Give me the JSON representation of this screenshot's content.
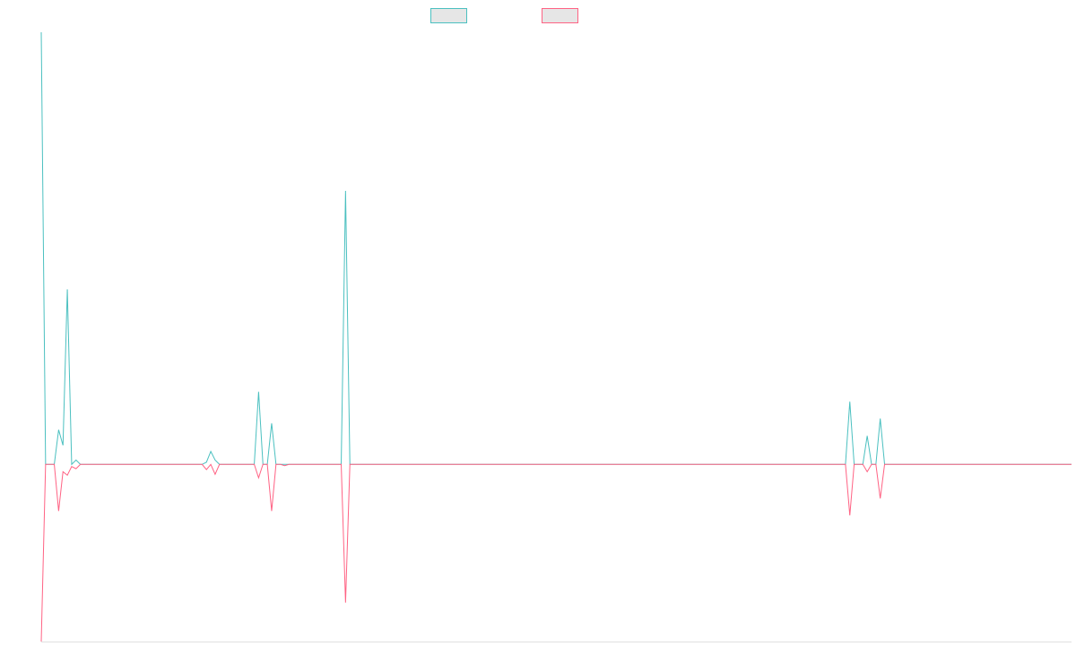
{
  "chart_data": {
    "type": "line",
    "ylim": [
      -41,
      100
    ],
    "series": [
      {
        "color": "#4bc0c0",
        "values": [
          100,
          0,
          0,
          0,
          8,
          4.4,
          40.5,
          0,
          1,
          0,
          0,
          0,
          0,
          0,
          0,
          0,
          0,
          0,
          0,
          0,
          0,
          0,
          0,
          0,
          0,
          0,
          0,
          0,
          0,
          0,
          0,
          0,
          0,
          0,
          0,
          0,
          0,
          0,
          0.5,
          3,
          1,
          0,
          0,
          0,
          0,
          0,
          0,
          0,
          0,
          0,
          16.8,
          0,
          0,
          9.5,
          0,
          0,
          0,
          0,
          0,
          0,
          0,
          0,
          0,
          0,
          0,
          0,
          0,
          0,
          0,
          0,
          63.3,
          0,
          0,
          0,
          0,
          0,
          0,
          0,
          0,
          0,
          0,
          0,
          0,
          0,
          0,
          0,
          0,
          0,
          0,
          0,
          0,
          0,
          0,
          0,
          0,
          0,
          0,
          0,
          0,
          0,
          0,
          0,
          0,
          0,
          0,
          0,
          0,
          0,
          0,
          0,
          0,
          0,
          0,
          0,
          0,
          0,
          0,
          0,
          0,
          0,
          0,
          0,
          0,
          0,
          0,
          0,
          0,
          0,
          0,
          0,
          0,
          0,
          0,
          0,
          0,
          0,
          0,
          0,
          0,
          0,
          0,
          0,
          0,
          0,
          0,
          0,
          0,
          0,
          0,
          0,
          0,
          0,
          0,
          0,
          0,
          0,
          0,
          0,
          0,
          0,
          0,
          0,
          0,
          0,
          0,
          0,
          0,
          0,
          0,
          0,
          0,
          0,
          0,
          0,
          0,
          0,
          0,
          0,
          0,
          0,
          0,
          0,
          0,
          0,
          0,
          0,
          14.5,
          0,
          0,
          0,
          6.6,
          0,
          0,
          10.6,
          0,
          0,
          0,
          0,
          0,
          0,
          0,
          0,
          0,
          0,
          0,
          0,
          0,
          0,
          0,
          0,
          0,
          0,
          0,
          0,
          0,
          0,
          0,
          0,
          0,
          0,
          0,
          0,
          0,
          0,
          0,
          0,
          0,
          0,
          0,
          0,
          0,
          0,
          0,
          0,
          0,
          0,
          0,
          0
        ]
      },
      {
        "color": "#ff6384",
        "values": [
          -41,
          0,
          0,
          0,
          -10.8,
          -1.7,
          -2.5,
          -0.5,
          -1,
          0,
          0,
          0,
          0,
          0,
          0,
          0,
          0,
          0,
          0,
          0,
          0,
          0,
          0,
          0,
          0,
          0,
          0,
          0,
          0,
          0,
          0,
          0,
          0,
          0,
          0,
          0,
          0,
          0,
          -1.2,
          0,
          -2.3,
          0,
          0,
          0,
          0,
          0,
          0,
          0,
          0,
          0,
          -3.1,
          0,
          0,
          -10.8,
          0,
          0,
          -0.3,
          0,
          0,
          0,
          0,
          0,
          0,
          0,
          0,
          0,
          0,
          0,
          0,
          0,
          -32,
          0,
          0,
          0,
          0,
          0,
          0,
          0,
          0,
          0,
          0,
          0,
          0,
          0,
          0,
          0,
          0,
          0,
          0,
          0,
          0,
          0,
          0,
          0,
          0,
          0,
          0,
          0,
          0,
          0,
          0,
          0,
          0,
          0,
          0,
          0,
          0,
          0,
          0,
          0,
          0,
          0,
          0,
          0,
          0,
          0,
          0,
          0,
          0,
          0,
          0,
          0,
          0,
          0,
          0,
          0,
          0,
          0,
          0,
          0,
          0,
          0,
          0,
          0,
          0,
          0,
          0,
          0,
          0,
          0,
          0,
          0,
          0,
          0,
          0,
          0,
          0,
          0,
          0,
          0,
          0,
          0,
          0,
          0,
          0,
          0,
          0,
          0,
          0,
          0,
          0,
          0,
          0,
          0,
          0,
          0,
          0,
          0,
          0,
          0,
          0,
          0,
          0,
          0,
          0,
          0,
          0,
          0,
          0,
          0,
          0,
          0,
          0,
          0,
          0,
          0,
          -11.8,
          0,
          0,
          0,
          -1.7,
          0,
          0,
          -7.9,
          0,
          0,
          0,
          0,
          0,
          0,
          0,
          0,
          0,
          0,
          0,
          0,
          0,
          0,
          0,
          0,
          0,
          0,
          0,
          0,
          0,
          0,
          0,
          0,
          0,
          0,
          0,
          0,
          0,
          0,
          0,
          0,
          0,
          0,
          0,
          0,
          0,
          0,
          0,
          0,
          0,
          0,
          0,
          0
        ]
      }
    ]
  }
}
